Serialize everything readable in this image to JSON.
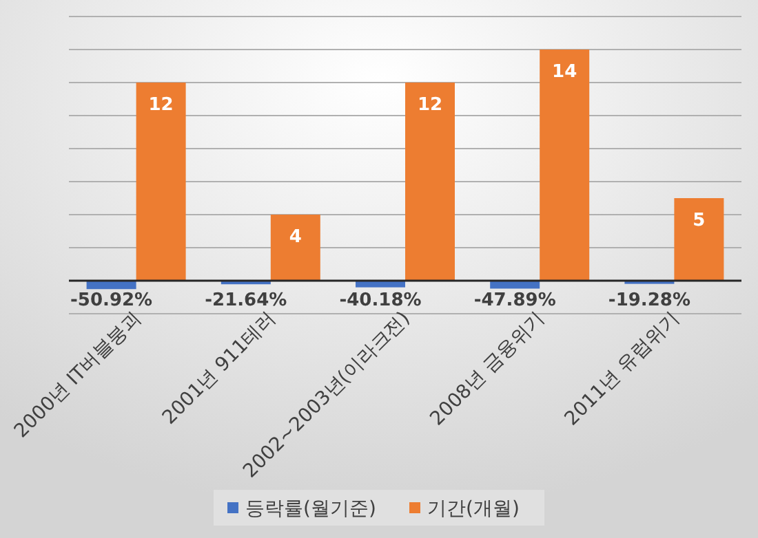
{
  "chart_data": {
    "type": "bar",
    "categories": [
      "2000년 IT버블붕괴",
      "2001년 911테러",
      "2002~2003년(이라크전)",
      "2008년 금융위기",
      "2011년 유럽위기"
    ],
    "series": [
      {
        "name": "등락률(월기준)",
        "color": "#4472c4",
        "values": [
          -0.5092,
          -0.2164,
          -0.4018,
          -0.4789,
          -0.1928
        ],
        "value_labels": [
          "-50.92%",
          "-21.64%",
          "-40.18%",
          "-47.89%",
          "-19.28%"
        ]
      },
      {
        "name": "기간(개월)",
        "color": "#ed7d31",
        "values": [
          12,
          4,
          12,
          14,
          5
        ],
        "value_labels": [
          "12",
          "4",
          "12",
          "14",
          "5"
        ]
      }
    ],
    "ylim": [
      -2,
      16
    ],
    "yticks": [
      {
        "value": -2,
        "label": null
      },
      {
        "value": 0,
        "label": null
      },
      {
        "value": 2,
        "label": null
      },
      {
        "value": 4,
        "label": null
      },
      {
        "value": 6,
        "label": null
      },
      {
        "value": 8,
        "label": null
      },
      {
        "value": 10,
        "label": null
      },
      {
        "value": 12,
        "label": null
      },
      {
        "value": 14,
        "label": null
      },
      {
        "value": 16,
        "label": null
      }
    ],
    "tick_labels": "x",
    "grid": "y",
    "legend": "bottom"
  }
}
